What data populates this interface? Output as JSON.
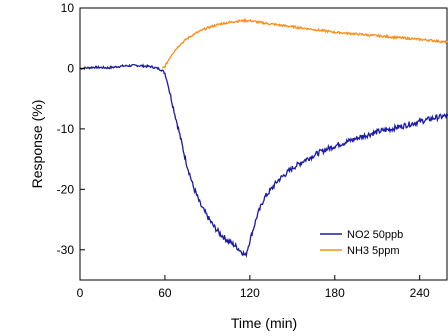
{
  "chart_data": {
    "type": "line",
    "title": "",
    "xlabel": "Time (min)",
    "ylabel": "Response (%)",
    "xlim": [
      0,
      260
    ],
    "ylim": [
      -35,
      10
    ],
    "xticks": [
      0,
      60,
      120,
      180,
      240
    ],
    "yticks": [
      10,
      0,
      -10,
      -20,
      -30
    ],
    "xtick_labels": [
      "0",
      "60",
      "120",
      "180",
      "240"
    ],
    "ytick_labels": [
      "10",
      "0",
      "-10",
      "-20",
      "-30"
    ],
    "grid": false,
    "legend_position": "bottom-right",
    "series": [
      {
        "name": "NO2 50ppb",
        "color": "#1a1aa6",
        "x": [
          0,
          10,
          20,
          30,
          40,
          50,
          55,
          58,
          60,
          62,
          65,
          70,
          75,
          80,
          85,
          90,
          95,
          100,
          105,
          110,
          115,
          117,
          120,
          125,
          130,
          140,
          150,
          160,
          170,
          180,
          190,
          200,
          210,
          220,
          230,
          240,
          250,
          260
        ],
        "y": [
          0.0,
          0.2,
          0.1,
          0.4,
          0.5,
          0.3,
          0.0,
          -0.3,
          -0.8,
          -2.5,
          -5.5,
          -10.5,
          -15.5,
          -19.5,
          -22.5,
          -24.5,
          -26.3,
          -27.6,
          -28.6,
          -29.4,
          -30.5,
          -31.0,
          -28.5,
          -24.5,
          -21.5,
          -18.5,
          -16.5,
          -15.0,
          -13.8,
          -12.8,
          -12.0,
          -11.2,
          -10.5,
          -10.0,
          -9.4,
          -8.8,
          -8.2,
          -7.8
        ]
      },
      {
        "name": "NH3 5ppm",
        "color": "#ff8c1a",
        "x": [
          58,
          60,
          62,
          65,
          70,
          75,
          80,
          85,
          90,
          95,
          100,
          105,
          110,
          115,
          120,
          125,
          130,
          140,
          150,
          160,
          170,
          180,
          190,
          200,
          210,
          220,
          230,
          240,
          250,
          260
        ],
        "y": [
          0.0,
          0.3,
          1.2,
          2.4,
          3.8,
          4.8,
          5.6,
          6.2,
          6.7,
          7.1,
          7.4,
          7.6,
          7.8,
          7.9,
          7.9,
          7.7,
          7.5,
          7.2,
          6.9,
          6.6,
          6.3,
          6.0,
          5.8,
          5.6,
          5.4,
          5.2,
          5.0,
          4.8,
          4.6,
          4.3
        ]
      }
    ]
  }
}
